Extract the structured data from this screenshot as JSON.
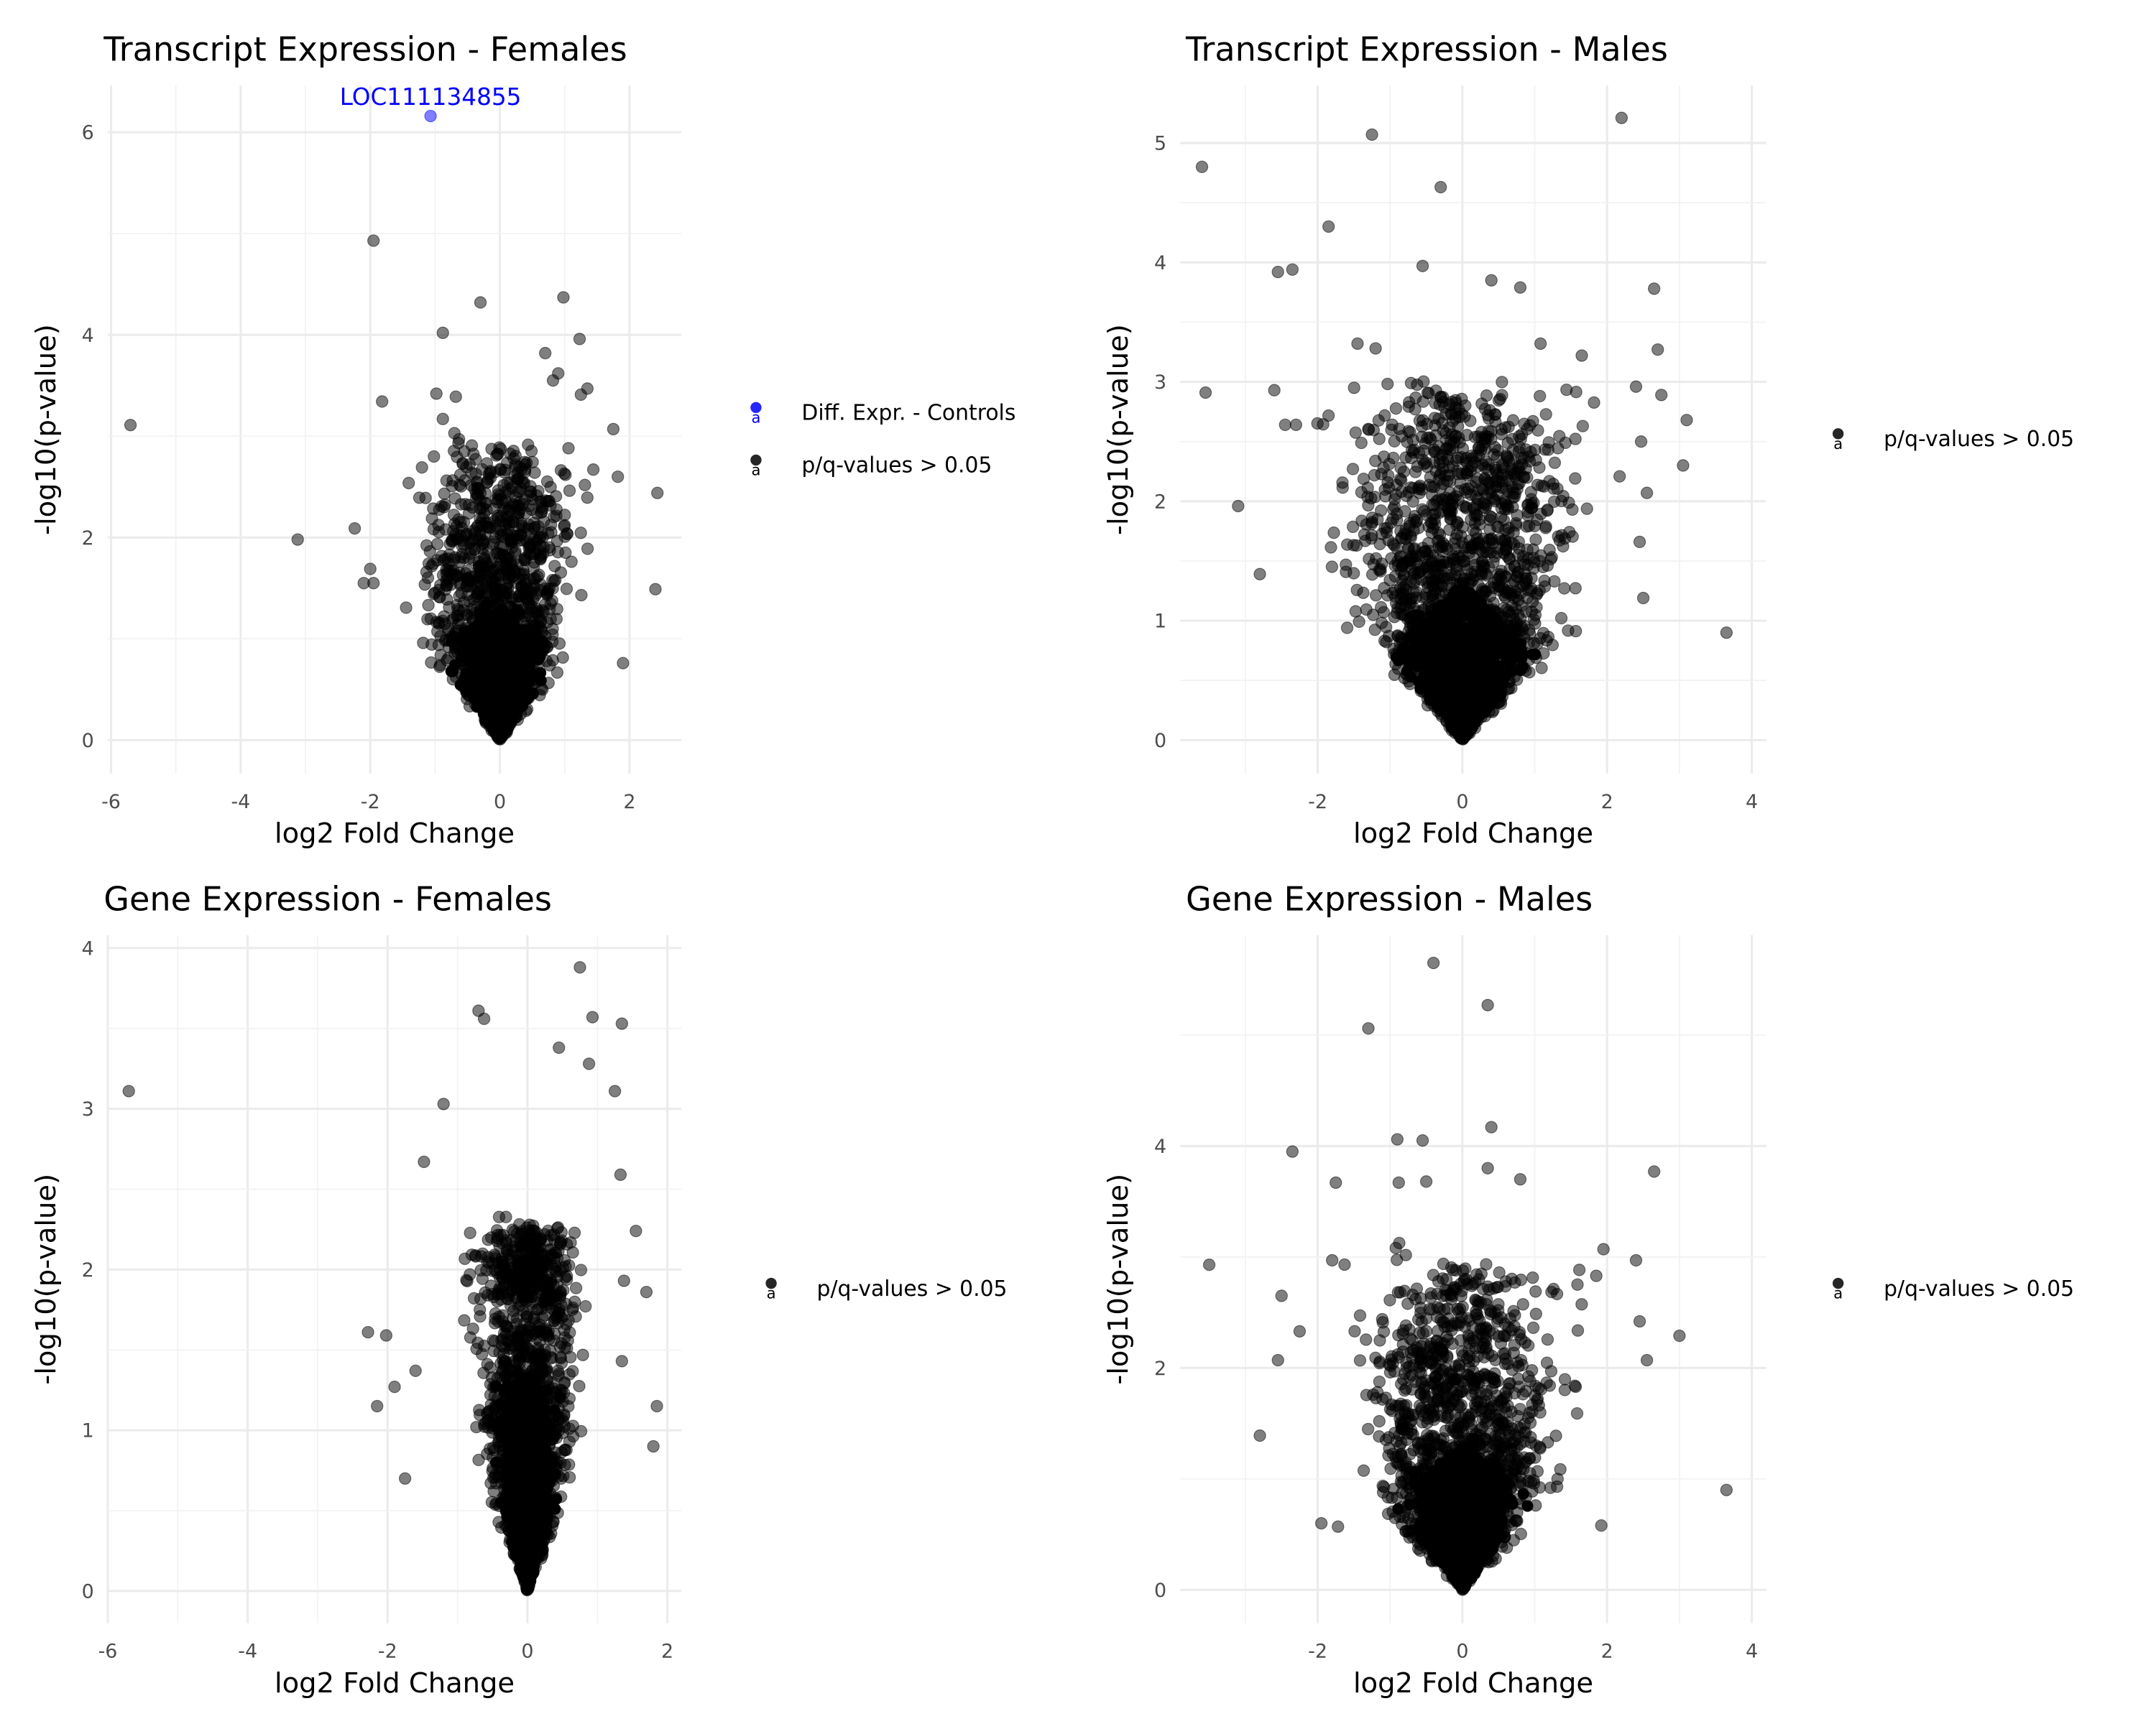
{
  "chart_data": [
    {
      "type": "scatter",
      "title": "Transcript Expression - Females",
      "xlabel": "log2 Fold Change",
      "ylabel": "-log10(p-value)",
      "xlim": [
        -6.05,
        2.8
      ],
      "ylim": [
        -0.33,
        6.46
      ],
      "x_ticks": [
        -6,
        -4,
        -2,
        0,
        2
      ],
      "y_ticks": [
        0,
        2,
        4,
        6
      ],
      "grid": true,
      "legend_position": "right",
      "legend": [
        {
          "label": "Diff. Expr. - Controls",
          "color": "#0000ff"
        },
        {
          "label": "p/q-values > 0.05",
          "color": "#000000"
        }
      ],
      "annotations": [
        {
          "text": "LOC111134855",
          "x": -1.07,
          "y": 6.16,
          "color": "#0000ff"
        }
      ],
      "series": [
        {
          "name": "Diff. Expr. - Controls",
          "color": "#0000ff",
          "points": [
            [
              -1.07,
              6.16
            ]
          ]
        },
        {
          "name": "p/q-values > 0.05",
          "color": "#000000",
          "points": [
            [
              -1.95,
              4.93
            ],
            [
              -0.3,
              4.32
            ],
            [
              0.98,
              4.37
            ],
            [
              -0.88,
              4.02
            ],
            [
              1.23,
              3.96
            ],
            [
              0.7,
              3.82
            ],
            [
              0.9,
              3.62
            ],
            [
              0.82,
              3.55
            ],
            [
              -5.7,
              3.11
            ],
            [
              -3.12,
              1.98
            ],
            [
              -2.24,
              2.09
            ],
            [
              2.43,
              2.44
            ],
            [
              2.4,
              1.49
            ],
            [
              1.82,
              2.6
            ],
            [
              1.75,
              3.07
            ],
            [
              1.9,
              0.76
            ],
            [
              -2.1,
              1.55
            ],
            [
              -2.0,
              1.69
            ],
            [
              -1.95,
              1.55
            ],
            [
              -0.98,
              3.42
            ],
            [
              -0.68,
              3.39
            ],
            [
              -0.88,
              3.17
            ],
            [
              1.35,
              3.47
            ],
            [
              1.25,
              3.41
            ]
          ]
        }
      ]
    },
    {
      "type": "scatter",
      "title": "Transcript Expression - Males",
      "xlabel": "log2 Fold Change",
      "ylabel": "-log10(p-value)",
      "xlim": [
        -3.9,
        4.2
      ],
      "ylim": [
        -0.28,
        5.48
      ],
      "x_ticks": [
        -2,
        0,
        2,
        4
      ],
      "y_ticks": [
        0,
        1,
        2,
        3,
        4,
        5
      ],
      "grid": true,
      "legend_position": "right",
      "legend": [
        {
          "label": "p/q-values > 0.05",
          "color": "#000000"
        }
      ],
      "series": [
        {
          "name": "p/q-values > 0.05",
          "color": "#000000",
          "points": [
            [
              -3.6,
              4.8
            ],
            [
              -1.25,
              5.07
            ],
            [
              2.2,
              5.21
            ],
            [
              -0.3,
              4.63
            ],
            [
              -1.85,
              4.3
            ],
            [
              -2.55,
              3.92
            ],
            [
              -2.35,
              3.94
            ],
            [
              -0.55,
              3.97
            ],
            [
              0.4,
              3.85
            ],
            [
              0.8,
              3.79
            ],
            [
              2.65,
              3.78
            ],
            [
              2.7,
              3.27
            ],
            [
              -3.55,
              2.91
            ],
            [
              -3.1,
              1.96
            ],
            [
              -2.8,
              1.39
            ],
            [
              3.05,
              2.3
            ],
            [
              3.1,
              2.68
            ],
            [
              3.65,
              0.9
            ],
            [
              2.5,
              1.19
            ],
            [
              2.75,
              2.89
            ],
            [
              -2.6,
              2.93
            ],
            [
              -1.45,
              3.32
            ],
            [
              -1.2,
              3.28
            ],
            [
              1.08,
              3.32
            ],
            [
              1.65,
              3.22
            ],
            [
              2.4,
              2.96
            ],
            [
              2.47,
              2.5
            ],
            [
              -2.45,
              2.64
            ],
            [
              -2.3,
              2.64
            ],
            [
              2.55,
              2.07
            ],
            [
              2.45,
              1.66
            ]
          ]
        }
      ]
    },
    {
      "type": "scatter",
      "title": "Gene Expression - Females",
      "xlabel": "log2 Fold Change",
      "ylabel": "-log10(p-value)",
      "xlim": [
        -6.0,
        2.2
      ],
      "ylim": [
        -0.2,
        4.08
      ],
      "x_ticks": [
        -6,
        -4,
        -2,
        0,
        2
      ],
      "y_ticks": [
        0,
        1,
        2,
        3,
        4
      ],
      "grid": true,
      "legend_position": "right",
      "legend": [
        {
          "label": "p/q-values > 0.05",
          "color": "#000000"
        }
      ],
      "series": [
        {
          "name": "p/q-values > 0.05",
          "color": "#000000",
          "points": [
            [
              -5.7,
              3.11
            ],
            [
              0.75,
              3.88
            ],
            [
              -0.7,
              3.61
            ],
            [
              -0.62,
              3.56
            ],
            [
              1.35,
              3.53
            ],
            [
              0.93,
              3.57
            ],
            [
              -1.2,
              3.03
            ],
            [
              -1.48,
              2.67
            ],
            [
              1.7,
              1.86
            ],
            [
              1.85,
              1.15
            ],
            [
              1.8,
              0.9
            ],
            [
              -2.28,
              1.61
            ],
            [
              -2.02,
              1.59
            ],
            [
              -2.15,
              1.15
            ],
            [
              1.55,
              2.24
            ],
            [
              1.33,
              2.59
            ],
            [
              1.38,
              1.93
            ],
            [
              0.45,
              3.38
            ],
            [
              0.88,
              3.28
            ],
            [
              1.25,
              3.11
            ],
            [
              -1.75,
              0.7
            ],
            [
              -1.6,
              1.37
            ],
            [
              -1.9,
              1.27
            ],
            [
              1.35,
              1.43
            ]
          ]
        }
      ]
    },
    {
      "type": "scatter",
      "title": "Gene Expression - Males",
      "xlabel": "log2 Fold Change",
      "ylabel": "-log10(p-value)",
      "xlim": [
        -3.9,
        4.2
      ],
      "ylim": [
        -0.3,
        5.9
      ],
      "x_ticks": [
        -2,
        0,
        2,
        4
      ],
      "y_ticks": [
        0,
        2,
        4
      ],
      "grid": true,
      "legend_position": "right",
      "legend": [
        {
          "label": "p/q-values > 0.05",
          "color": "#000000"
        }
      ],
      "series": [
        {
          "name": "p/q-values > 0.05",
          "color": "#000000",
          "points": [
            [
              -0.4,
              5.65
            ],
            [
              0.35,
              5.27
            ],
            [
              -1.3,
              5.06
            ],
            [
              0.4,
              4.17
            ],
            [
              -0.9,
              4.06
            ],
            [
              -2.35,
              3.95
            ],
            [
              2.65,
              3.77
            ],
            [
              -1.75,
              3.67
            ],
            [
              -3.5,
              2.93
            ],
            [
              -2.8,
              1.39
            ],
            [
              3.65,
              0.9
            ],
            [
              3.0,
              2.29
            ],
            [
              2.4,
              2.97
            ],
            [
              1.95,
              3.07
            ],
            [
              2.55,
              2.07
            ],
            [
              0.8,
              3.7
            ],
            [
              -0.55,
              4.05
            ],
            [
              0.35,
              3.8
            ],
            [
              -0.88,
              3.67
            ],
            [
              -0.5,
              3.68
            ],
            [
              -2.5,
              2.65
            ],
            [
              -2.25,
              2.33
            ],
            [
              -2.55,
              2.07
            ],
            [
              -1.8,
              2.97
            ],
            [
              1.85,
              2.83
            ],
            [
              2.45,
              2.42
            ],
            [
              -1.95,
              0.6
            ],
            [
              -1.72,
              0.57
            ],
            [
              1.92,
              0.58
            ]
          ]
        }
      ]
    }
  ]
}
